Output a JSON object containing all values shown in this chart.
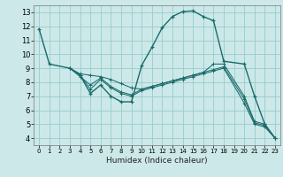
{
  "xlabel": "Humidex (Indice chaleur)",
  "bg_color": "#cce8e8",
  "grid_color": "#99cccc",
  "line_color": "#1a6b6b",
  "xlim": [
    -0.5,
    23.5
  ],
  "ylim": [
    3.5,
    13.5
  ],
  "xticks": [
    0,
    1,
    2,
    3,
    4,
    5,
    6,
    7,
    8,
    9,
    10,
    11,
    12,
    13,
    14,
    15,
    16,
    17,
    18,
    19,
    20,
    21,
    22,
    23
  ],
  "yticks": [
    4,
    5,
    6,
    7,
    8,
    9,
    10,
    11,
    12,
    13
  ],
  "line1_x": [
    0,
    1,
    3,
    4,
    5,
    6,
    7,
    8,
    9,
    10,
    11,
    12,
    13,
    14,
    15,
    16,
    17,
    18,
    20,
    21,
    22,
    23
  ],
  "line1_y": [
    11.8,
    9.3,
    9.0,
    8.5,
    7.2,
    7.8,
    7.0,
    6.6,
    6.6,
    9.2,
    10.5,
    11.9,
    12.7,
    13.05,
    13.1,
    12.7,
    12.4,
    9.5,
    9.3,
    7.0,
    5.0,
    4.0
  ],
  "line2_x": [
    3,
    4,
    5,
    6,
    7,
    8,
    9,
    10,
    11,
    12,
    13,
    14,
    15,
    16,
    17,
    18,
    20,
    21,
    22,
    23
  ],
  "line2_y": [
    9.0,
    8.6,
    8.5,
    8.4,
    8.2,
    7.9,
    7.6,
    7.5,
    7.7,
    7.9,
    8.1,
    8.3,
    8.5,
    8.7,
    9.3,
    9.3,
    7.0,
    5.2,
    5.0,
    4.0
  ],
  "line3_x": [
    3,
    4,
    5,
    6,
    7,
    8,
    9,
    10,
    11,
    12,
    13,
    14,
    15,
    16,
    17,
    18,
    20,
    21,
    22,
    23
  ],
  "line3_y": [
    9.0,
    8.5,
    7.5,
    8.2,
    7.6,
    7.2,
    7.0,
    7.4,
    7.6,
    7.8,
    8.0,
    8.2,
    8.4,
    8.6,
    8.8,
    9.0,
    6.5,
    5.0,
    4.8,
    4.0
  ],
  "line4_x": [
    3,
    4,
    5,
    6,
    7,
    8,
    9,
    10,
    11,
    12,
    13,
    14,
    15,
    16,
    17,
    18,
    20,
    21,
    22,
    23
  ],
  "line4_y": [
    9.0,
    8.4,
    7.8,
    8.3,
    7.7,
    7.3,
    7.1,
    7.5,
    7.7,
    7.9,
    8.1,
    8.3,
    8.5,
    8.7,
    8.9,
    9.1,
    6.8,
    5.1,
    4.9,
    4.0
  ]
}
